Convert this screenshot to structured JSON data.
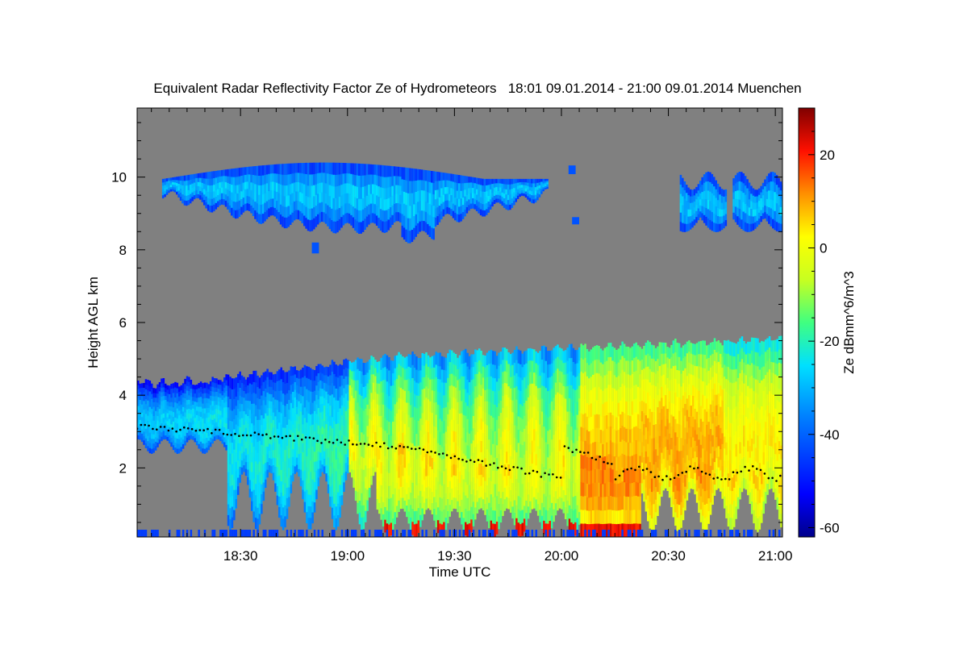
{
  "chart_data": {
    "type": "heatmap",
    "title": "Equivalent Radar Reflectivity Factor Ze of Hydrometeors   18:01 09.01.2014 - 21:00 09.01.2014 Muenchen",
    "xlabel": "Time UTC",
    "ylabel": "Height AGL km",
    "xlim_minutes": [
      1081,
      1262
    ],
    "ylim_km": [
      0.1,
      11.9
    ],
    "x_ticks": [
      {
        "minute": 1110,
        "label": "18:30"
      },
      {
        "minute": 1140,
        "label": "19:00"
      },
      {
        "minute": 1170,
        "label": "19:30"
      },
      {
        "minute": 1200,
        "label": "20:00"
      },
      {
        "minute": 1230,
        "label": "20:30"
      },
      {
        "minute": 1260,
        "label": "21:00"
      }
    ],
    "y_ticks": [
      {
        "value": 2,
        "label": "2"
      },
      {
        "value": 4,
        "label": "4"
      },
      {
        "value": 6,
        "label": "6"
      },
      {
        "value": 8,
        "label": "8"
      },
      {
        "value": 10,
        "label": "10"
      }
    ],
    "colorbar": {
      "label": "Ze dBmm^6/m^3",
      "range": [
        -62,
        30
      ],
      "ticks": [
        {
          "value": 20,
          "label": "20"
        },
        {
          "value": 0,
          "label": "0"
        },
        {
          "value": -20,
          "label": "-20"
        },
        {
          "value": -40,
          "label": "-40"
        },
        {
          "value": -60,
          "label": "-60"
        }
      ]
    },
    "background_color": "#808080",
    "layers": [
      {
        "name": "upper-cloud-layer",
        "time_range": [
          1088,
          1196
        ],
        "base_km": 8.6,
        "top_km": 10.3,
        "ze_range_dbz": [
          -50,
          -25
        ]
      },
      {
        "name": "upper-cloud-patches-late",
        "time_range": [
          1234,
          1262
        ],
        "base_km": 8.4,
        "top_km": 10.2,
        "ze_range_dbz": [
          -50,
          -35
        ]
      },
      {
        "name": "lower-precipitating-layer",
        "time_range": [
          1081,
          1262
        ],
        "base_km": 0.1,
        "top_km": 5.6,
        "ze_range_dbz": [
          -45,
          25
        ]
      }
    ],
    "melting_layer_dots": "black dotted line near 3 km decreasing to ~1.7 km after 20:30"
  }
}
